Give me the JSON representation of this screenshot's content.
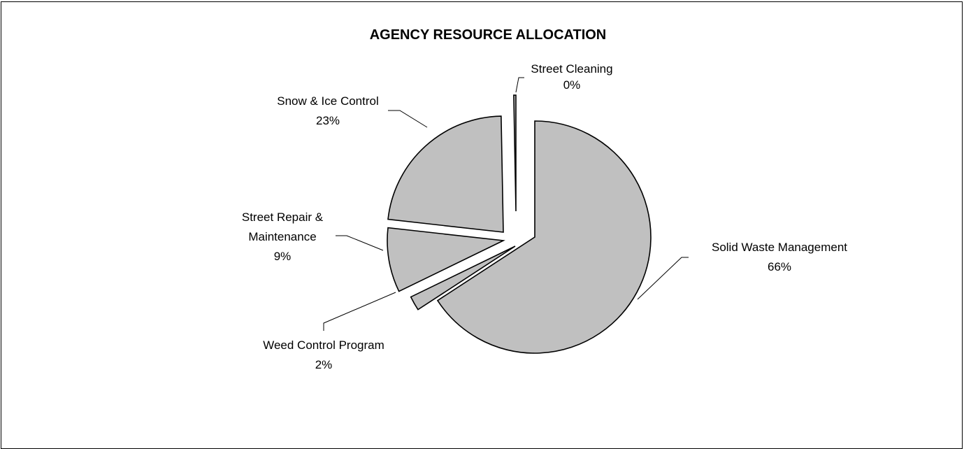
{
  "chart_data": {
    "type": "pie",
    "title": "AGENCY RESOURCE ALLOCATION",
    "exploded": true,
    "fill_color": "#c0c0c0",
    "edge_color": "#000000",
    "slices": [
      {
        "label": "Solid Waste Management",
        "percent_label": "66%",
        "value": 66
      },
      {
        "label": "Weed Control Program",
        "percent_label": "2%",
        "value": 2
      },
      {
        "label": "Street Repair & Maintenance",
        "percent_label": "9%",
        "value": 9
      },
      {
        "label": "Snow & Ice Control",
        "percent_label": "23%",
        "value": 23
      },
      {
        "label": "Street Cleaning",
        "percent_label": "0%",
        "value": 0.3
      }
    ],
    "legend": "none"
  }
}
